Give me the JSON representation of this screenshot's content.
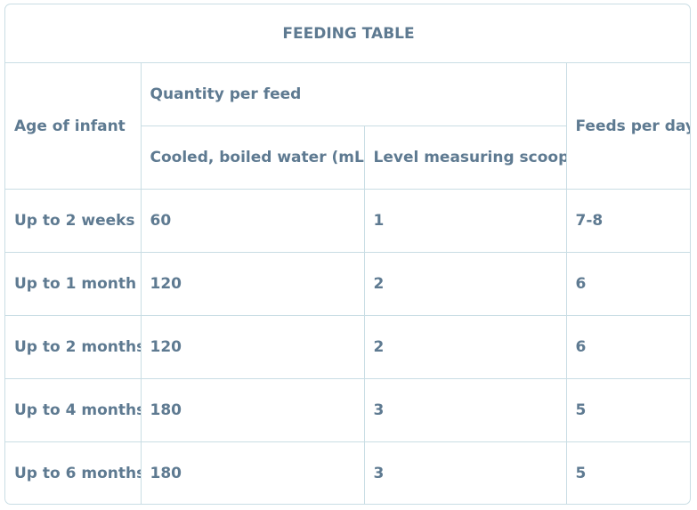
{
  "table": {
    "title": "FEEDING TABLE",
    "headers": {
      "age": "Age of infant",
      "quantity_group": "Quantity per feed",
      "water": "Cooled, boiled water (mL)",
      "scoops": "Level measuring scoops",
      "feeds": "Feeds per day"
    },
    "rows": [
      {
        "age": "Up to 2 weeks",
        "water": "60",
        "scoops": "1",
        "feeds": "7-8"
      },
      {
        "age": "Up to 1 month",
        "water": "120",
        "scoops": "2",
        "feeds": "6"
      },
      {
        "age": "Up to 2 months",
        "water": "120",
        "scoops": "2",
        "feeds": "6"
      },
      {
        "age": "Up to 4 months",
        "water": "180",
        "scoops": "3",
        "feeds": "5"
      },
      {
        "age": "Up to 6 months",
        "water": "180",
        "scoops": "3",
        "feeds": "5"
      }
    ],
    "colors": {
      "text": "#5e7a91",
      "border": "#c9dde4"
    }
  }
}
